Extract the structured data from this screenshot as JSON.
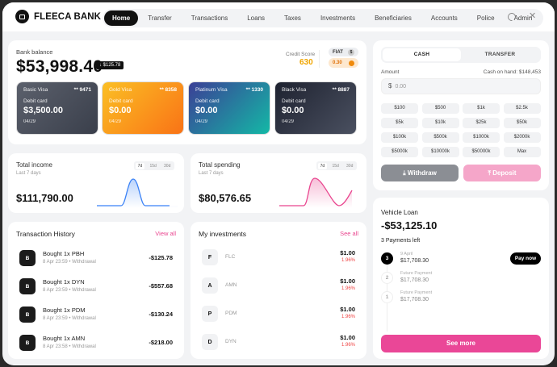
{
  "app": {
    "title": "FLEECA BANK"
  },
  "nav": {
    "items": [
      "Home",
      "Transfer",
      "Transactions",
      "Loans",
      "Taxes",
      "Investments",
      "Beneficiaries",
      "Accounts",
      "Police",
      "Admin"
    ],
    "active": "Home"
  },
  "header_icons": [
    "moon-icon",
    "close-icon"
  ],
  "balance": {
    "label": "Bank balance",
    "value": "$53,998.40",
    "chip": "↓ $125.78",
    "credit_label": "Credit Score",
    "credit_value": "630",
    "fiat_label": "FIAT",
    "fiat_icon": "$",
    "crypto_value": "0.30"
  },
  "cards": [
    {
      "name": "Basic Visa",
      "num": "** 9471",
      "type": "Debit card",
      "value": "$3,500.00",
      "exp": "04/29"
    },
    {
      "name": "Gold Visa",
      "num": "** 8358",
      "type": "Debit card",
      "value": "$0.00",
      "exp": "04/29"
    },
    {
      "name": "Platinum Visa",
      "num": "** 1330",
      "type": "Debit card",
      "value": "$0.00",
      "exp": "04/29"
    },
    {
      "name": "Black Visa",
      "num": "** 8887",
      "type": "Debit card",
      "value": "$0.00",
      "exp": "04/29"
    }
  ],
  "income": {
    "title": "Total income",
    "sub": "Last 7 days",
    "value": "$111,790.00",
    "ranges": [
      "7d",
      "15d",
      "30d"
    ],
    "color": "#3b82f6"
  },
  "spending": {
    "title": "Total spending",
    "sub": "Last 7 days",
    "value": "$80,576.65",
    "ranges": [
      "7d",
      "15d",
      "30d"
    ],
    "color": "#e9468f"
  },
  "transactions": {
    "title": "Transaction History",
    "link": "View all",
    "items": [
      {
        "icon": "B",
        "name": "Bought 1x PBH",
        "meta": "8 Apr 23:59  •  Withdrawal",
        "amount": "-$125.78"
      },
      {
        "icon": "B",
        "name": "Bought 1x DYN",
        "meta": "8 Apr 23:59  •  Withdrawal",
        "amount": "-$557.68"
      },
      {
        "icon": "B",
        "name": "Bought 1x PDM",
        "meta": "8 Apr 23:59  •  Withdrawal",
        "amount": "-$130.24"
      },
      {
        "icon": "B",
        "name": "Bought 1x AMN",
        "meta": "8 Apr 23:58  •  Withdrawal",
        "amount": "-$218.00"
      }
    ]
  },
  "investments": {
    "title": "My investments",
    "link": "See all",
    "items": [
      {
        "icon": "F",
        "name": "FLC",
        "price": "$1.00",
        "change": "1.96%"
      },
      {
        "icon": "A",
        "name": "AMN",
        "price": "$1.00",
        "change": "1.96%"
      },
      {
        "icon": "P",
        "name": "PDM",
        "price": "$1.00",
        "change": "1.96%"
      },
      {
        "icon": "D",
        "name": "DYN",
        "price": "$1.00",
        "change": "1.96%"
      }
    ]
  },
  "cash": {
    "tabs": [
      "CASH",
      "TRANSFER"
    ],
    "active": "CASH",
    "amount_label": "Amount",
    "cash_on_hand": "Cash on hand: $148,453",
    "currency": "$",
    "placeholder": "0.00",
    "quick": [
      "$100",
      "$500",
      "$1k",
      "$2.5k",
      "$5k",
      "$10k",
      "$25k",
      "$50k",
      "$100k",
      "$500k",
      "$1000k",
      "$2000k",
      "$5000k",
      "$10000k",
      "$50000k",
      "Max"
    ],
    "withdraw": "⤓ Withdraw",
    "deposit": "⤒ Deposit"
  },
  "loan": {
    "title": "Vehicle Loan",
    "value": "-$53,125.10",
    "left": "3 Payments left",
    "pay_now": "Pay now",
    "see_more": "See more",
    "steps": [
      {
        "n": "3",
        "date": "9 April",
        "amount": "$17,708.30"
      },
      {
        "n": "2",
        "date": "Future Payment",
        "amount": "$17,708.30"
      },
      {
        "n": "1",
        "date": "Future Payment",
        "amount": "$17,708.30"
      }
    ]
  }
}
